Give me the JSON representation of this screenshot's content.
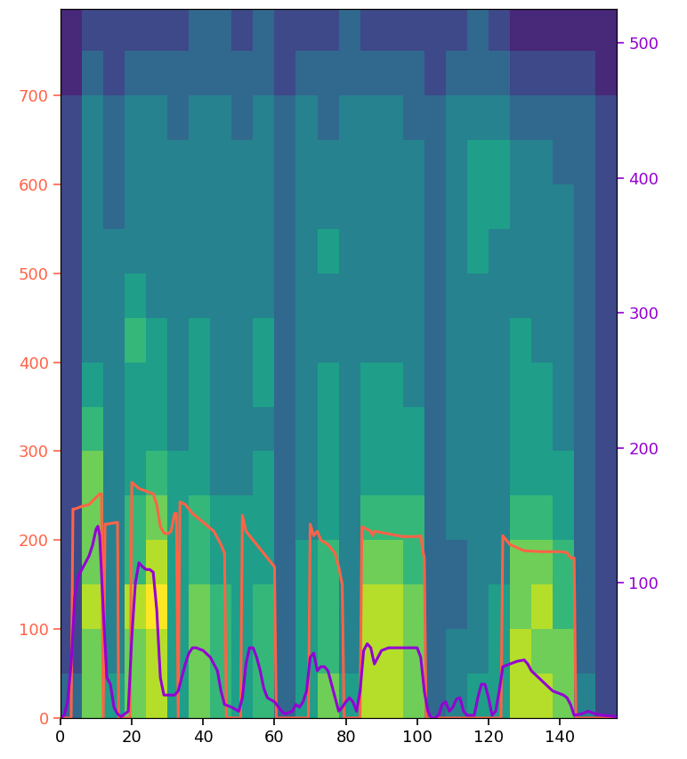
{
  "chart_data": {
    "type": "heatmap",
    "xlim": [
      0,
      156
    ],
    "xticks": [
      0,
      20,
      40,
      60,
      80,
      100,
      120,
      140
    ],
    "ylim": [
      0,
      797
    ],
    "yticks": [
      0,
      100,
      200,
      300,
      400,
      500,
      600,
      700
    ],
    "y2lim": [
      0,
      525
    ],
    "y2ticks": [
      100,
      200,
      300,
      400,
      500
    ],
    "cell_xedges": [
      0,
      6,
      12,
      18,
      24,
      30,
      36,
      42,
      48,
      54,
      60,
      66,
      72,
      78,
      84,
      90,
      96,
      102,
      108,
      114,
      120,
      126,
      132,
      138,
      144,
      150,
      156
    ],
    "cell_yedges": [
      0,
      50,
      100,
      150,
      200,
      250,
      300,
      350,
      400,
      450,
      500,
      550,
      600,
      650,
      700,
      750,
      800
    ],
    "cell_range": [
      0,
      9
    ],
    "cells": [
      [
        3,
        7,
        5,
        7,
        8,
        5,
        7,
        6,
        5,
        6,
        3,
        5,
        7,
        5,
        8,
        8,
        7,
        3,
        4,
        5,
        5,
        8,
        8,
        7,
        4,
        2
      ],
      [
        2,
        7,
        4,
        7,
        8,
        5,
        7,
        6,
        5,
        6,
        3,
        5,
        6,
        4,
        8,
        8,
        7,
        3,
        4,
        4,
        5,
        8,
        7,
        7,
        3,
        2
      ],
      [
        2,
        8,
        4,
        8,
        9,
        5,
        7,
        6,
        5,
        6,
        3,
        5,
        6,
        4,
        8,
        8,
        7,
        3,
        3,
        4,
        5,
        7,
        8,
        6,
        3,
        2
      ],
      [
        2,
        7,
        4,
        6,
        8,
        5,
        6,
        5,
        5,
        5,
        3,
        5,
        6,
        4,
        7,
        7,
        6,
        3,
        3,
        4,
        4,
        7,
        7,
        6,
        3,
        2
      ],
      [
        2,
        7,
        4,
        6,
        7,
        5,
        6,
        5,
        5,
        5,
        3,
        4,
        5,
        4,
        6,
        6,
        6,
        3,
        4,
        4,
        4,
        6,
        6,
        5,
        3,
        2
      ],
      [
        2,
        7,
        4,
        5,
        6,
        5,
        5,
        4,
        4,
        5,
        3,
        4,
        5,
        4,
        5,
        5,
        5,
        3,
        4,
        4,
        4,
        5,
        5,
        5,
        3,
        2
      ],
      [
        2,
        6,
        4,
        5,
        5,
        4,
        5,
        4,
        4,
        4,
        3,
        4,
        5,
        4,
        5,
        5,
        5,
        3,
        4,
        4,
        4,
        5,
        5,
        4,
        3,
        2
      ],
      [
        2,
        5,
        4,
        5,
        5,
        4,
        5,
        4,
        4,
        5,
        3,
        4,
        5,
        4,
        5,
        5,
        4,
        3,
        4,
        4,
        4,
        5,
        5,
        4,
        3,
        2
      ],
      [
        2,
        4,
        4,
        6,
        5,
        4,
        5,
        4,
        4,
        5,
        3,
        4,
        4,
        4,
        4,
        4,
        4,
        3,
        4,
        4,
        4,
        5,
        4,
        4,
        3,
        2
      ],
      [
        2,
        4,
        4,
        5,
        4,
        4,
        4,
        4,
        4,
        4,
        3,
        4,
        4,
        4,
        4,
        4,
        4,
        3,
        4,
        4,
        4,
        4,
        4,
        4,
        3,
        2
      ],
      [
        2,
        4,
        4,
        4,
        4,
        4,
        4,
        4,
        4,
        4,
        3,
        4,
        5,
        4,
        4,
        4,
        4,
        3,
        4,
        5,
        4,
        4,
        4,
        4,
        3,
        2
      ],
      [
        2,
        4,
        3,
        4,
        4,
        4,
        4,
        4,
        4,
        4,
        3,
        4,
        4,
        4,
        4,
        4,
        4,
        3,
        4,
        5,
        5,
        4,
        4,
        4,
        3,
        2
      ],
      [
        2,
        4,
        3,
        4,
        4,
        4,
        4,
        4,
        4,
        4,
        3,
        4,
        4,
        4,
        4,
        4,
        4,
        3,
        4,
        5,
        5,
        4,
        4,
        3,
        3,
        2
      ],
      [
        2,
        4,
        3,
        4,
        4,
        3,
        4,
        4,
        3,
        4,
        3,
        4,
        3,
        4,
        4,
        4,
        3,
        3,
        4,
        4,
        4,
        3,
        3,
        3,
        3,
        2
      ],
      [
        1,
        3,
        2,
        3,
        3,
        3,
        3,
        3,
        3,
        3,
        2,
        3,
        3,
        3,
        3,
        3,
        3,
        2,
        3,
        3,
        3,
        2,
        2,
        2,
        2,
        1
      ],
      [
        1,
        2,
        2,
        2,
        2,
        2,
        3,
        3,
        2,
        3,
        2,
        2,
        2,
        3,
        2,
        2,
        2,
        2,
        2,
        3,
        2,
        1,
        1,
        1,
        1,
        1
      ]
    ],
    "series": [
      {
        "type": "line",
        "color": "#ff6347",
        "axis": "y",
        "x": [
          0,
          3,
          3.5,
          4,
          6,
          8,
          10,
          11,
          11.5,
          12,
          12.5,
          13,
          16,
          16.3,
          19.5,
          20,
          22,
          24,
          26,
          27,
          28,
          29,
          30,
          31,
          32,
          32.5,
          33,
          33.5,
          35,
          37,
          40,
          43,
          45,
          46,
          46.5,
          50.5,
          51,
          52,
          54,
          56,
          58,
          60,
          60.5,
          69.5,
          70,
          71,
          72,
          73,
          75,
          77,
          78,
          79,
          79.5,
          84,
          84.5,
          87,
          87.5,
          88,
          92,
          96,
          100,
          101,
          101.5,
          102,
          102.5,
          123.5,
          124,
          126,
          130,
          135,
          140,
          142,
          143,
          144,
          144.5,
          156
        ],
        "values": [
          0,
          0,
          235,
          235,
          238,
          240,
          248,
          252,
          252,
          0,
          218,
          218,
          220,
          0,
          0,
          265,
          258,
          255,
          252,
          240,
          215,
          208,
          207,
          210,
          230,
          230,
          0,
          243,
          240,
          230,
          220,
          210,
          195,
          185,
          0,
          0,
          228,
          210,
          200,
          190,
          180,
          170,
          0,
          0,
          218,
          205,
          210,
          200,
          195,
          185,
          170,
          150,
          0,
          0,
          215,
          210,
          205,
          210,
          207,
          204,
          204,
          205,
          190,
          180,
          0,
          0,
          205,
          195,
          188,
          187,
          187,
          186,
          180,
          180,
          0,
          0
        ]
      },
      {
        "type": "line",
        "color": "#9400d3",
        "axis": "y2",
        "x": [
          0,
          1,
          2,
          3,
          4,
          5,
          6,
          7,
          8,
          9,
          10,
          10.5,
          11,
          12,
          13,
          14,
          15,
          16,
          17,
          18,
          19,
          20,
          21,
          22,
          23,
          24,
          25,
          26,
          27,
          28,
          29,
          30,
          31,
          32,
          33,
          34,
          35,
          36,
          37,
          38,
          40,
          42,
          44,
          45,
          46,
          48,
          50,
          51,
          52,
          53,
          54,
          55,
          56,
          57,
          58,
          60,
          62,
          63,
          65,
          66,
          67,
          68,
          69,
          70,
          71,
          72,
          73,
          74,
          75,
          76,
          77,
          78,
          79,
          80,
          81,
          82,
          83,
          84,
          85,
          86,
          87,
          88,
          89,
          90,
          92,
          96,
          100,
          101,
          102,
          103,
          104,
          105,
          106,
          107,
          108,
          109,
          110,
          111,
          112,
          113,
          114,
          116,
          117,
          118,
          119,
          120,
          121,
          122,
          123,
          124,
          126,
          128,
          130,
          131,
          132,
          134,
          136,
          138,
          140,
          141,
          142,
          143,
          144,
          146,
          148,
          150,
          152,
          156
        ],
        "values": [
          0,
          2,
          12,
          40,
          90,
          105,
          110,
          115,
          120,
          128,
          140,
          142,
          135,
          80,
          30,
          25,
          8,
          3,
          1,
          3,
          5,
          60,
          100,
          115,
          112,
          110,
          110,
          108,
          80,
          30,
          17,
          17,
          17,
          17,
          20,
          30,
          40,
          48,
          52,
          52,
          50,
          45,
          35,
          20,
          10,
          8,
          5,
          15,
          40,
          52,
          52,
          45,
          35,
          22,
          15,
          12,
          5,
          3,
          5,
          10,
          8,
          12,
          20,
          45,
          48,
          35,
          38,
          38,
          35,
          25,
          15,
          5,
          8,
          12,
          15,
          12,
          5,
          20,
          50,
          55,
          52,
          40,
          45,
          50,
          52,
          52,
          52,
          45,
          20,
          5,
          0,
          0,
          2,
          10,
          12,
          5,
          8,
          14,
          15,
          5,
          2,
          2,
          15,
          25,
          25,
          15,
          2,
          5,
          20,
          38,
          40,
          42,
          43,
          40,
          35,
          30,
          25,
          20,
          18,
          17,
          15,
          10,
          2,
          3,
          5,
          3,
          2,
          1
        ]
      }
    ]
  }
}
